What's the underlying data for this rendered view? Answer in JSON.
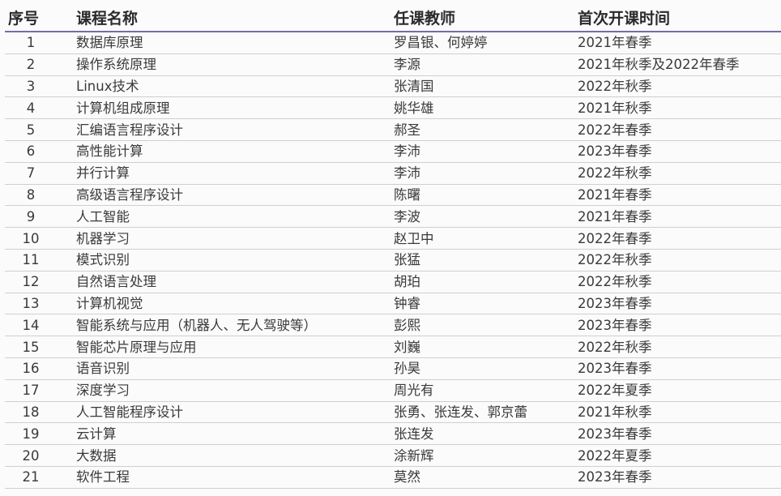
{
  "headers": [
    "序号",
    "课程名称",
    "任课教师",
    "首次开课时间"
  ],
  "rows": [
    [
      "1",
      "数据库原理",
      "罗昌银、何婷婷",
      "2021年春季"
    ],
    [
      "2",
      "操作系统原理",
      "李源",
      "2021年秋季及2022年春季"
    ],
    [
      "3",
      "Linux技术",
      "张清国",
      "2022年秋季"
    ],
    [
      "4",
      "计算机组成原理",
      "姚华雄",
      "2021年秋季"
    ],
    [
      "5",
      "汇编语言程序设计",
      "郝圣",
      "2022年春季"
    ],
    [
      "6",
      "高性能计算",
      "李沛",
      "2023年春季"
    ],
    [
      "7",
      "并行计算",
      "李沛",
      "2022年秋季"
    ],
    [
      "8",
      "高级语言程序设计",
      "陈曙",
      "2021年春季"
    ],
    [
      "9",
      "人工智能",
      "李波",
      "2021年春季"
    ],
    [
      "10",
      "机器学习",
      "赵卫中",
      "2022年春季"
    ],
    [
      "11",
      "模式识别",
      "张猛",
      "2022年秋季"
    ],
    [
      "12",
      "自然语言处理",
      "胡珀",
      "2022年秋季"
    ],
    [
      "13",
      "计算机视觉",
      "钟睿",
      "2023年春季"
    ],
    [
      "14",
      "智能系统与应用（机器人、无人驾驶等）",
      "彭熙",
      "2023年春季"
    ],
    [
      "15",
      "智能芯片原理与应用",
      "刘巍",
      "2022年秋季"
    ],
    [
      "16",
      "语音识别",
      "孙昊",
      "2023年春季"
    ],
    [
      "17",
      "深度学习",
      "周光有",
      "2022年夏季"
    ],
    [
      "18",
      "人工智能程序设计",
      "张勇、张连发、郭京蕾",
      "2021年秋季"
    ],
    [
      "19",
      "云计算",
      "张连发",
      "2023年春季"
    ],
    [
      "20",
      "大数据",
      "涂新辉",
      "2022年夏季"
    ],
    [
      "21",
      "软件工程",
      "莫然",
      "2023年春季"
    ]
  ],
  "colors": {
    "header_rule": "#7b6aa8",
    "row_rule": "#cfcfcf"
  }
}
